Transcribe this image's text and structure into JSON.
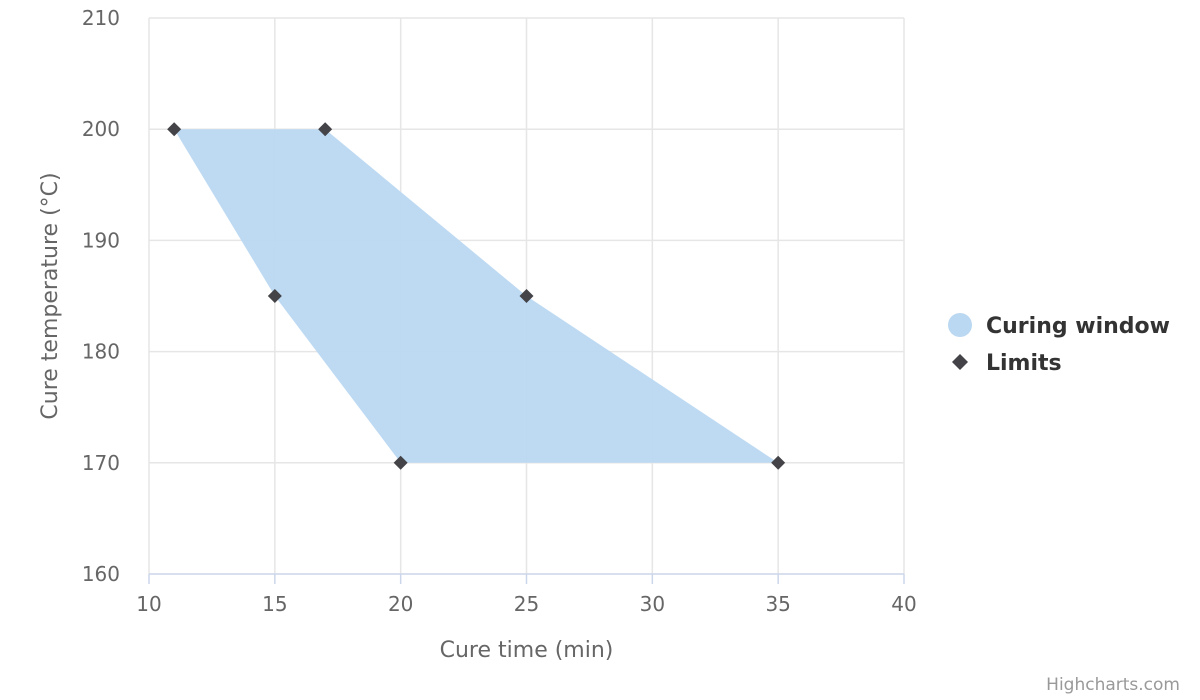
{
  "chart_data": {
    "type": "area",
    "title": "",
    "xlabel": "Cure time (min)",
    "ylabel": "Cure temperature (°C)",
    "xlim": [
      10,
      40
    ],
    "ylim": [
      160,
      210
    ],
    "x_ticks": [
      10,
      15,
      20,
      25,
      30,
      35,
      40
    ],
    "y_ticks": [
      160,
      170,
      180,
      190,
      200,
      210
    ],
    "grid": true,
    "legend_position": "right",
    "series": [
      {
        "name": "Curing window",
        "type": "polygon",
        "color": "#bad8f2",
        "points": [
          [
            11,
            200
          ],
          [
            17,
            200
          ],
          [
            25,
            185
          ],
          [
            35,
            170
          ],
          [
            20,
            170
          ],
          [
            15,
            185
          ]
        ]
      },
      {
        "name": "Limits",
        "type": "scatter",
        "marker": "diamond",
        "color": "#434348",
        "points": [
          [
            11,
            200
          ],
          [
            17,
            200
          ],
          [
            15,
            185
          ],
          [
            25,
            185
          ],
          [
            20,
            170
          ],
          [
            35,
            170
          ]
        ]
      }
    ]
  },
  "credits": "Highcharts.com"
}
